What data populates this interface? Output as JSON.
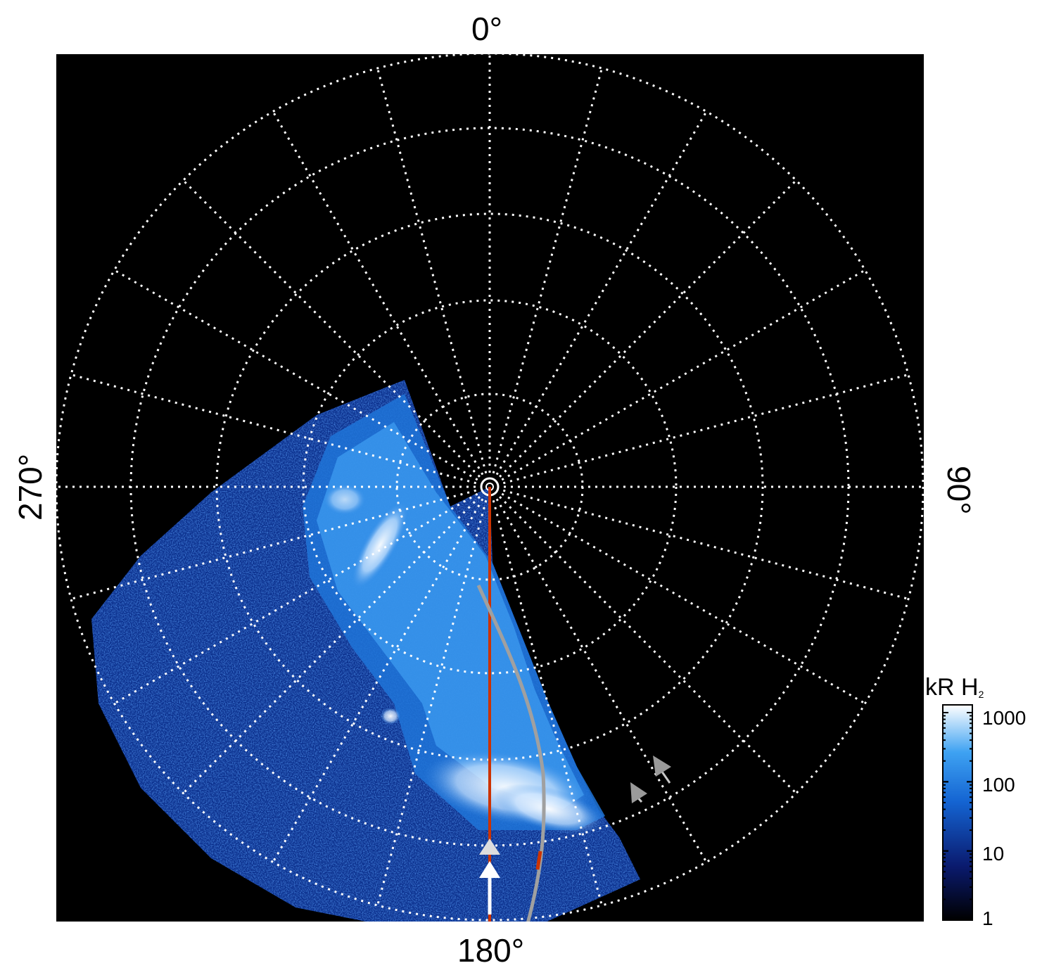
{
  "polar_map": {
    "angle_labels": {
      "top": "0°",
      "right": "90°",
      "bottom": "180°",
      "left": "270°"
    },
    "colors": {
      "background": "#000000",
      "grid": "#ffffff",
      "red_track": "#cc3300",
      "gray_track": "#a0a0a0",
      "aurora_low": "#0a2a8a",
      "aurora_mid": "#1e7fe6",
      "aurora_high": "#f2f8ff"
    }
  },
  "colorbar": {
    "title_main": "kR H",
    "title_sub": "2",
    "ticks": [
      "1000",
      "100",
      "10",
      "1"
    ],
    "scale": "log"
  }
}
